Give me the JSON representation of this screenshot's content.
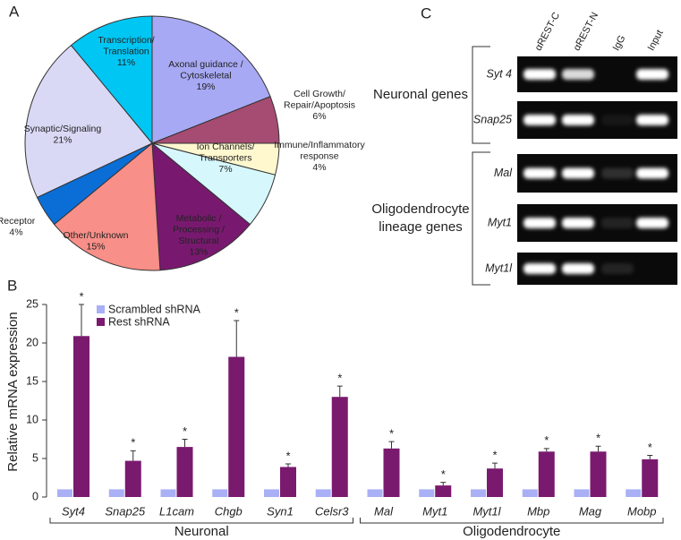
{
  "chart_data": [
    {
      "type": "pie",
      "panel": "A",
      "categories": [
        [
          "Axonal guidance /",
          "Cytoskeletal"
        ],
        [
          "Cell Growth/",
          "Repair/Apoptosis"
        ],
        [
          "Immune/Inflammatory",
          "response"
        ],
        [
          "Ion Channels/",
          "Transporters"
        ],
        [
          "Metabolic /",
          "Processing /",
          "Structural"
        ],
        [
          "Other/Unknown"
        ],
        [
          "Receptor"
        ],
        [
          "Synaptic/Signaling"
        ],
        [
          "Transcription/",
          "Translation"
        ]
      ],
      "values": [
        19,
        6,
        4,
        7,
        13,
        15,
        4,
        21,
        11
      ],
      "value_labels": [
        "19%",
        "6%",
        "4%",
        "7%",
        "13%",
        "15%",
        "4%",
        "21%",
        "11%"
      ],
      "colors": [
        "#a8a9f4",
        "#a64b72",
        "#fff8cf",
        "#d6f7fb",
        "#78196f",
        "#f88f88",
        "#0b6ed6",
        "#d9d9f6",
        "#00c6f3"
      ]
    },
    {
      "type": "bar",
      "panel": "B",
      "categories": [
        "Syt4",
        "Snap25",
        "L1cam",
        "Chgb",
        "Syn1",
        "Celsr3",
        "Mal",
        "Myt1",
        "Myt1l",
        "Mbp",
        "Mag",
        "Mobp"
      ],
      "groups": [
        "Neuronal",
        "Oligodendrocyte"
      ],
      "series": [
        {
          "name": "Scrambled shRNA",
          "color": "#a9b0f5",
          "values": [
            1,
            1,
            1,
            1,
            1,
            1,
            1,
            1,
            1,
            1,
            1,
            1
          ]
        },
        {
          "name": "Rest shRNA",
          "color": "#7a1a6e",
          "values": [
            20.9,
            4.7,
            6.5,
            18.2,
            3.9,
            13.0,
            6.3,
            1.5,
            3.7,
            5.9,
            5.9,
            4.9
          ],
          "errors": [
            4.1,
            1.3,
            1.0,
            4.7,
            0.4,
            1.4,
            0.9,
            0.4,
            0.7,
            0.4,
            0.7,
            0.5
          ],
          "annotations": [
            "*",
            "*",
            "*",
            "*",
            "*",
            "*",
            "*",
            "*",
            "*",
            "*",
            "*",
            "*"
          ]
        }
      ],
      "y_label": "Relative mRNA expression",
      "ylim": [
        0,
        25
      ],
      "yticks": [
        0,
        5,
        10,
        15,
        20,
        25
      ]
    }
  ],
  "gel": {
    "panel": "C",
    "columns": [
      "αREST-C",
      "αREST-N",
      "IgG",
      "Input"
    ],
    "groups": [
      {
        "name": [
          "Neuronal genes"
        ],
        "rows": [
          "Syt 4",
          "Snap25"
        ]
      },
      {
        "name": [
          "Oligodendrocyte",
          "lineage genes"
        ],
        "rows": [
          "Mal",
          "Myt1",
          "Myt1l"
        ]
      }
    ]
  }
}
